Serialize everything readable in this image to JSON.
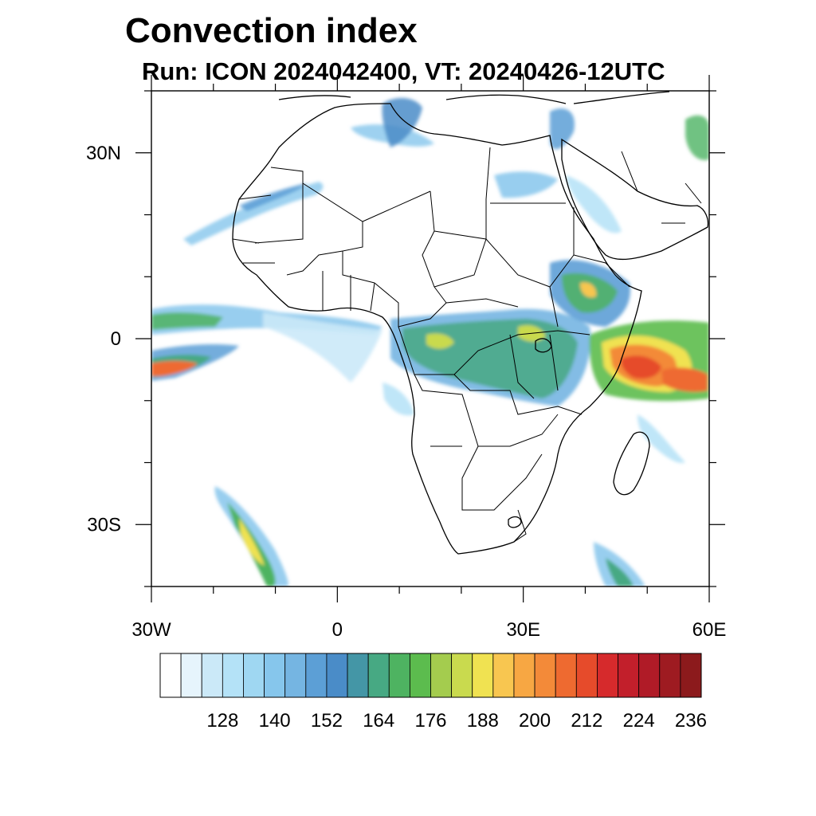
{
  "title": "Convection index",
  "subtitle": "Run: ICON 2024042400,  VT: 20240426-12UTC",
  "map": {
    "lat_labels": [
      {
        "lat": 30,
        "text": "30N"
      },
      {
        "lat": 0,
        "text": "0"
      },
      {
        "lat": -30,
        "text": "30S"
      }
    ],
    "lon_labels": [
      {
        "lon": -30,
        "text": "30W"
      },
      {
        "lon": 0,
        "text": "0"
      },
      {
        "lon": 30,
        "text": "30E"
      },
      {
        "lon": 60,
        "text": "60E"
      }
    ],
    "lon_range": [
      -30,
      60
    ],
    "lat_range": [
      -40,
      40
    ],
    "minor_tick_step_deg": 10
  },
  "colorbar": {
    "colors": [
      "#ffffff",
      "#e6f4fc",
      "#cbe9f8",
      "#b4e2f7",
      "#9fd7f2",
      "#86c6ec",
      "#75b5e2",
      "#5c9fd6",
      "#4a8cc8",
      "#4496a6",
      "#47a983",
      "#4eb361",
      "#5cbc4e",
      "#a4cc4e",
      "#c9da4e",
      "#f0e251",
      "#f8c650",
      "#f7a743",
      "#f38a39",
      "#ee6a30",
      "#e64b2b",
      "#d62a2c",
      "#c21f2b",
      "#b01b27",
      "#9e1b21",
      "#8c1a1c"
    ],
    "tick_labels": [
      "128",
      "140",
      "152",
      "164",
      "176",
      "188",
      "200",
      "212",
      "224",
      "236"
    ]
  }
}
